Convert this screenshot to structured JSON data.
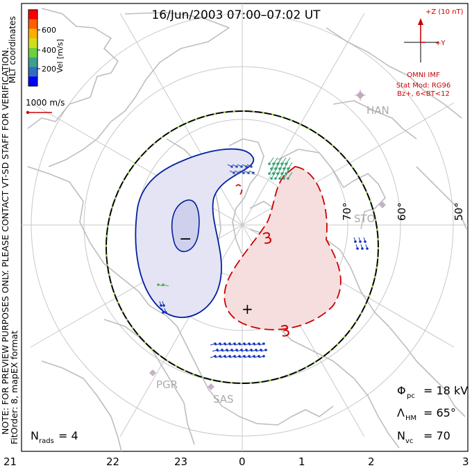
{
  "title": "16/Jun/2003 07:00–07:02 UT",
  "colorbar": {
    "label": "Vel [m/s]",
    "ticks": [
      "600",
      "400",
      "200"
    ],
    "colors": [
      "#0000ff",
      "#2f6fbf",
      "#3f9f8f",
      "#6fcf3f",
      "#cfdf1f",
      "#ffaf00",
      "#ff5f00",
      "#ff0000"
    ]
  },
  "coordinates_label": "MLT coordinates",
  "scale_label": "1000 m/s",
  "disclaimer": "NOTE: FOR PREVIEW PURPOSES ONLY. PLEASE CONTACT VT-SD STAFF FOR VERIFICATION.",
  "fit_info": "FitOrder: 8, mapEX format",
  "imf": {
    "bz_label": "+Z (10 nT)",
    "by_label": "+Y",
    "title": "OMNI IMF",
    "model_line1": "Stat Mod: RG96",
    "model_line2": "Bz+, 6<BT<12"
  },
  "latitude_labels": [
    "70°",
    "60°",
    "50°"
  ],
  "stations": [
    "HAN",
    "STO",
    "PGR",
    "SAS"
  ],
  "contours": {
    "negative_label": "−",
    "positive_label": "+",
    "positive_value": "3",
    "negative_color": "#00209f",
    "positive_color": "#cc0000"
  },
  "stats": {
    "phi_pc": {
      "sym": "Φ",
      "sub": "pc",
      "value": "= 18 kV"
    },
    "lambda_hm": {
      "sym": "Λ",
      "sub": "HM",
      "value": "= 65°"
    },
    "n_vc": {
      "sym": "N",
      "sub": "vc",
      "value": "= 70"
    },
    "n_rads": {
      "sym": "N",
      "sub": "rads",
      "value": "= 4"
    }
  },
  "mlt_axis": [
    "21",
    "22",
    "23",
    "0",
    "1",
    "2",
    "3"
  ]
}
